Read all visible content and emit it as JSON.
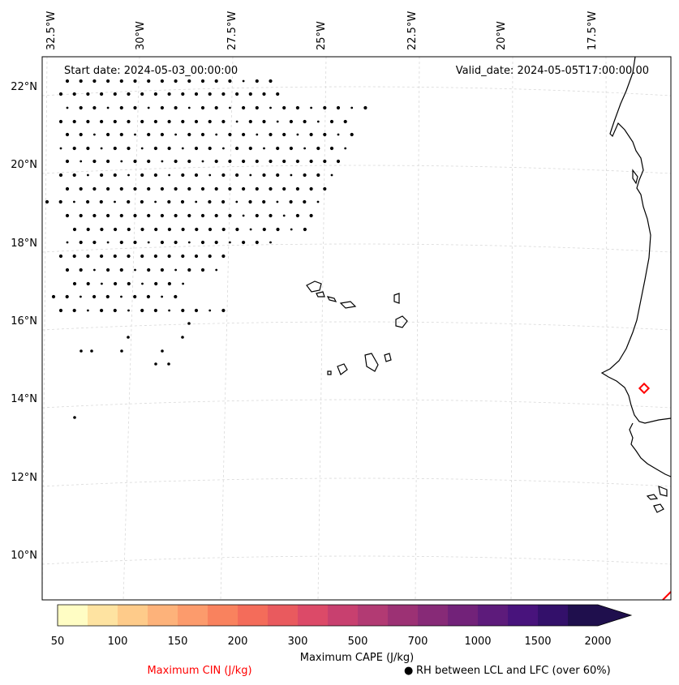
{
  "map": {
    "start_date_label": "Start date: 2024-05-03_00:00:00",
    "valid_date_label": "Valid_date: 2024-05-05T17:00:00.00",
    "lon_labels": [
      "32.5°W",
      "30°W",
      "27.5°W",
      "25°W",
      "22.5°W",
      "20°W",
      "17.5°W"
    ],
    "lat_labels": [
      "22°N",
      "20°N",
      "18°N",
      "16°N",
      "14°N",
      "12°N",
      "10°N"
    ]
  },
  "colorbar": {
    "title": "Maximum CAPE (J/kg)",
    "tick_labels": [
      "50",
      "100",
      "150",
      "200",
      "300",
      "500",
      "700",
      "1000",
      "1500",
      "2000"
    ],
    "colors": [
      "#fffdc4",
      "#fee3a1",
      "#fecb8a",
      "#fdb27a",
      "#fc9b6c",
      "#f9825e",
      "#f46c5a",
      "#e95a5e",
      "#dc4a68",
      "#c8406f",
      "#b23a73",
      "#9c3174",
      "#872a77",
      "#722279",
      "#5d1b7b",
      "#48137c",
      "#33106a",
      "#1f0f4d"
    ]
  },
  "legend": {
    "cin_label": "Maximum CIN (J/kg)",
    "cin_color": "#ff0000",
    "rh_label": "RH between LCL and LFC (over 60%)",
    "rh_marker": "●"
  }
}
